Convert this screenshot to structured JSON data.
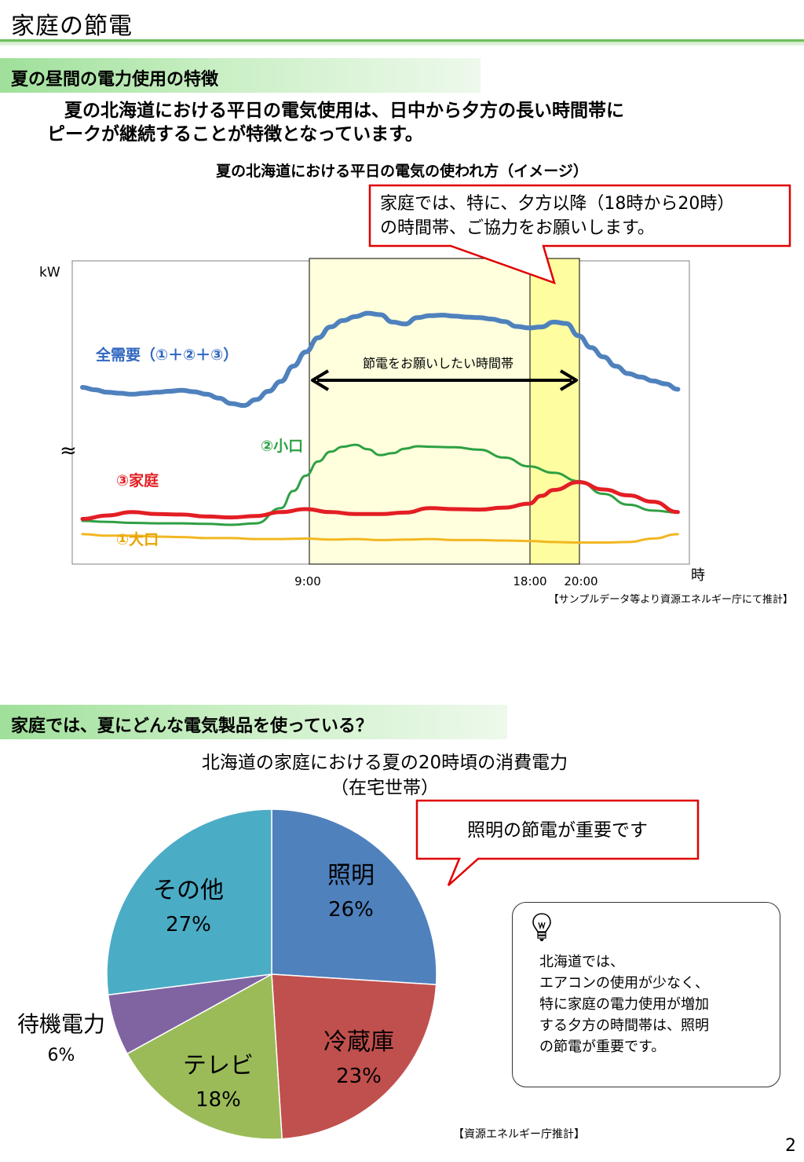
{
  "page": {
    "title": "家庭の節電",
    "page_number": "2"
  },
  "section1": {
    "heading": "夏の昼間の電力使用の特徴",
    "intro_line1": "夏の北海道における平日の電気使用は、日中から夕方の長い時間帯に",
    "intro_line2": "ピークが継続することが特徴となっています。",
    "chart_caption": "夏の北海道における平日の電気の使われ方（イメージ）",
    "callout_line1": "家庭では、特に、夕方以降（18時から20時）",
    "callout_line2": "の時間帯、ご協力をお願いします。",
    "source": "【サンプルデータ等より資源エネルギー庁にて推計】"
  },
  "section2": {
    "heading": "家庭では、夏にどんな電気製品を使っている？",
    "pie_title_line1": "北海道の家庭における夏の20時頃の消費電力",
    "pie_title_line2": "（在宅世帯）",
    "callout": "照明の節電が重要です",
    "note": "北海道では、\nエアコンの使用が少なく、\n特に家庭の電力使用が増加\nする夕方の時間帯は、照明\nの節電が重要です。",
    "source": "【資源エネルギー庁推計】"
  },
  "chart_data": [
    {
      "type": "line",
      "title": "夏の北海道における平日の電気の使われ方（イメージ）",
      "ylabel": "kW",
      "xlabel": "時",
      "x_ticks": [
        "9:00",
        "18:00",
        "20:00"
      ],
      "axis_break_symbol": "≈",
      "highlight_band_label": "節電をお願いしたい時間帯",
      "highlight_ranges": [
        {
          "from": "9:00",
          "to": "20:00",
          "color": "#ffffdd"
        },
        {
          "from": "18:00",
          "to": "20:00",
          "color": "#fefea0"
        }
      ],
      "series": [
        {
          "name": "全需要（①＋②＋③）",
          "color": "#4f81bd",
          "x": [
            0,
            0.5,
            1,
            1.5,
            2,
            2.5,
            3,
            3.5,
            4,
            4.5,
            5,
            5.5,
            6,
            6.5,
            7,
            7.5,
            8,
            8.5,
            9,
            9.5,
            10,
            10.5,
            11,
            11.5,
            12,
            12.5,
            13,
            13.5,
            14,
            14.5,
            15,
            15.5,
            16,
            16.5,
            17,
            17.5,
            18,
            18.5,
            19,
            19.5,
            20,
            20.5,
            21,
            21.5,
            22,
            22.5,
            23,
            23.5,
            24
          ],
          "values": [
            36,
            35.5,
            35,
            34.8,
            34.6,
            34.8,
            35,
            35.2,
            35.4,
            35.1,
            34.6,
            33.8,
            32.7,
            32.3,
            33.5,
            35.2,
            37.2,
            40.3,
            43.2,
            46.1,
            48.3,
            49.6,
            50.4,
            51.1,
            50.8,
            49.3,
            48.9,
            50.2,
            50.6,
            50.7,
            50.5,
            50.3,
            50.2,
            49.9,
            49.4,
            48.4,
            48.1,
            48.3,
            49.3,
            49.0,
            46.5,
            44.1,
            42.2,
            40.3,
            38.8,
            38.1,
            37.3,
            36.7,
            35.6
          ]
        },
        {
          "name": "②小口",
          "color": "#2ea043",
          "x": [
            0,
            1,
            2,
            3,
            4,
            5,
            6,
            7,
            8,
            8.5,
            9,
            9.5,
            10,
            10.5,
            11,
            11.5,
            12,
            12.5,
            13,
            13.5,
            14,
            15,
            16,
            17,
            18,
            19,
            20,
            21,
            22,
            23,
            24
          ],
          "values": [
            8.8,
            8.6,
            8.4,
            8.3,
            8.3,
            8.2,
            8.0,
            8.3,
            11.4,
            14.9,
            18.0,
            20.9,
            22.9,
            23.9,
            24.3,
            23.4,
            22.2,
            22.6,
            23.5,
            24.0,
            23.9,
            23.8,
            23.3,
            21.7,
            19.9,
            18.6,
            16.9,
            14.3,
            12.1,
            10.9,
            10.5
          ]
        },
        {
          "name": "③家庭",
          "color": "#e31e24",
          "x": [
            0,
            1,
            2,
            3,
            4,
            5,
            6,
            7,
            8,
            9,
            10,
            11,
            12,
            13,
            14,
            15,
            16,
            17,
            18,
            18.5,
            19,
            20,
            21,
            22,
            23,
            24
          ],
          "values": [
            9.2,
            9.9,
            10.6,
            10.2,
            10.1,
            9.7,
            9.5,
            9.8,
            10.6,
            11.2,
            10.6,
            10.2,
            10.2,
            10.5,
            11.4,
            11.2,
            11.1,
            11.5,
            12.3,
            13.9,
            15.1,
            16.7,
            15.2,
            14.0,
            12.7,
            10.6
          ]
        },
        {
          "name": "①大口",
          "color": "#f2b721",
          "x": [
            0,
            1,
            2,
            3,
            4,
            5,
            6,
            7,
            8,
            9,
            10,
            11,
            12,
            13,
            14,
            15,
            16,
            17,
            18,
            19,
            20,
            21,
            22,
            23,
            24
          ],
          "values": [
            6.1,
            5.8,
            5.8,
            5.6,
            5.5,
            5.3,
            5.3,
            5.1,
            5.1,
            5.2,
            5.0,
            5.1,
            4.9,
            5.0,
            5.1,
            4.9,
            4.9,
            4.8,
            4.7,
            4.5,
            4.4,
            4.4,
            4.5,
            5.2,
            6.1
          ]
        }
      ]
    },
    {
      "type": "pie",
      "title": "北海道の家庭における夏の20時頃の消費電力（在宅世帯）",
      "slices": [
        {
          "label": "照明",
          "value": 26,
          "display": "26%",
          "color": "#4f81bd"
        },
        {
          "label": "冷蔵庫",
          "value": 23,
          "display": "23%",
          "color": "#c0504d"
        },
        {
          "label": "テレビ",
          "value": 18,
          "display": "18%",
          "color": "#9bbb59"
        },
        {
          "label": "待機電力",
          "value": 6,
          "display": "6%",
          "color": "#8064a2"
        },
        {
          "label": "その他",
          "value": 27,
          "display": "27%",
          "color": "#4bacc6"
        }
      ]
    }
  ]
}
